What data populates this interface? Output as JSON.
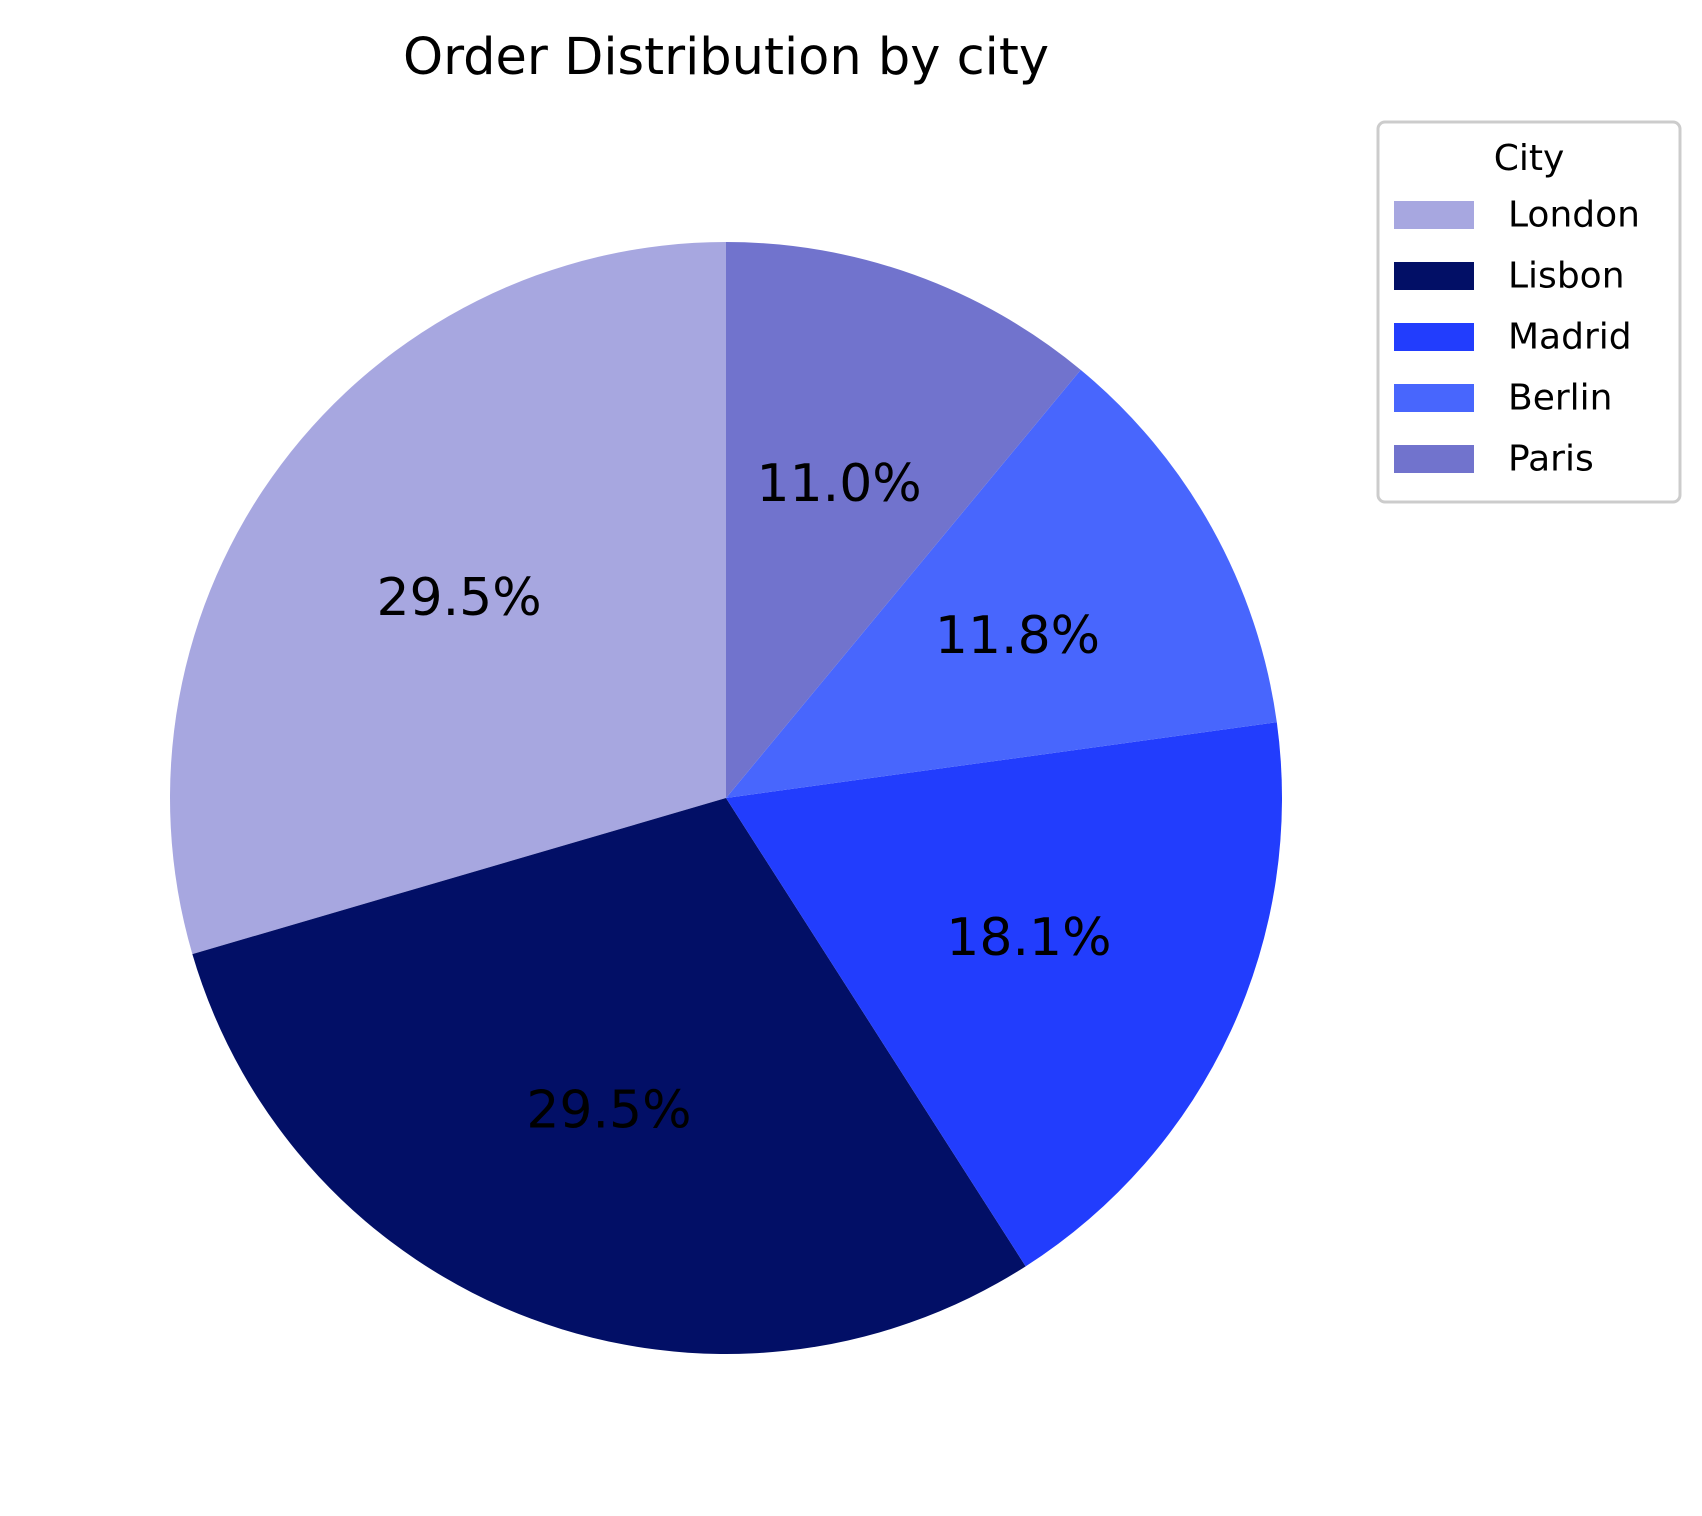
{
  "chart_data": {
    "type": "pie",
    "title": "Order Distribution by city",
    "start_angle_deg": 90,
    "direction": "counterclockwise",
    "slices": [
      {
        "name": "London",
        "percent": 29.5,
        "label": "29.5%",
        "color": "#a7a7e0"
      },
      {
        "name": "Lisbon",
        "percent": 29.5,
        "label": "29.5%",
        "color": "#020f66"
      },
      {
        "name": "Madrid",
        "percent": 18.1,
        "label": "18.1%",
        "color": "#223dfd"
      },
      {
        "name": "Berlin",
        "percent": 11.8,
        "label": "11.8%",
        "color": "#4866fd"
      },
      {
        "name": "Paris",
        "percent": 11.0,
        "label": "11.0%",
        "color": "#7173cd"
      }
    ],
    "legend": {
      "title": "City",
      "placement": "top-right"
    }
  }
}
